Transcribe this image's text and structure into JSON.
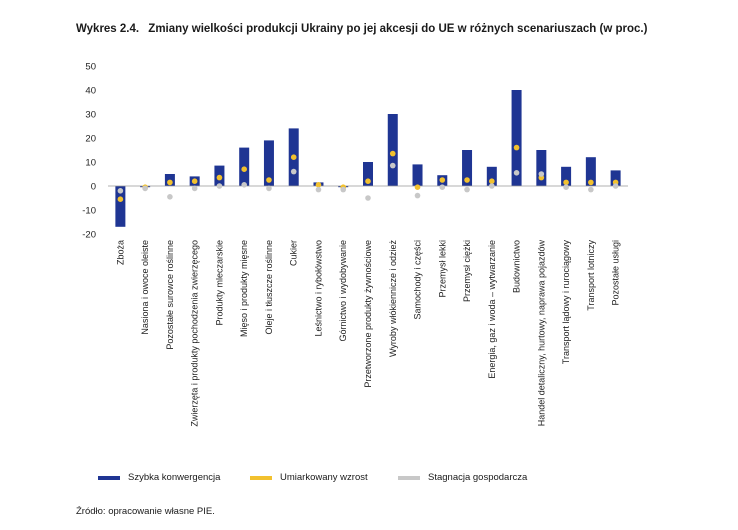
{
  "title": {
    "number": "Wykres 2.4.",
    "text": "Zmiany wielkości produkcji Ukrainy po jej akcesji do UE w różnych scenariuszach (w proc.)"
  },
  "source": "Źródło: opracowanie własne PIE.",
  "colors": {
    "bar": "#1f3593",
    "moderate": "#f2c12e",
    "stagnation": "#c8c8c8",
    "zero_line": "#999999"
  },
  "chart_data": {
    "type": "bar",
    "ylim": [
      -20,
      50
    ],
    "yticks": [
      50,
      40,
      30,
      20,
      10,
      0,
      -10,
      -20
    ],
    "grid": false,
    "legend_position": "bottom",
    "categories": [
      "Zboża",
      "Nasiona i owoce oleiste",
      "Pozostałe surowce roślinne",
      "Zwierzęta i produkty pochodzenia zwierzęcego",
      "Produkty mleczarskie",
      "Mięso i produkty mięsne",
      "Oleje i tłuszcze roślinne",
      "Cukier",
      "Leśnictwo i rybołówstwo",
      "Górnictwo i wydobywanie",
      "Przetworzone produkty żywnościowe",
      "Wyroby włókiennicze i odzież",
      "Samochody i części",
      "Przemysł lekki",
      "Przemysł ciężki",
      "Energia, gaz i woda – wytwarzanie",
      "Budownictwo",
      "Handel detaliczny, hurtowy, naprawa pojazdów",
      "Transport lądowy i rurociągowy",
      "Transport lotniczy",
      "Pozostałe usługi"
    ],
    "series": [
      {
        "name": "Szybka konwergencja",
        "kind": "bar",
        "values": [
          -17,
          -0.5,
          5,
          4,
          8.5,
          16,
          19,
          24,
          1.5,
          -0.5,
          10,
          30,
          9,
          4.5,
          15,
          8,
          40,
          15,
          8,
          12,
          6.5
        ]
      },
      {
        "name": "Umiarkowany wzrost",
        "kind": "dot",
        "values": [
          -5.5,
          -0.5,
          1.5,
          2,
          3.5,
          7,
          2.5,
          12,
          0.5,
          -0.5,
          2,
          13.5,
          -0.5,
          2.5,
          2.5,
          2,
          16,
          3.5,
          1.5,
          1.5,
          1.5
        ]
      },
      {
        "name": "Stagnacja gospodarcza",
        "kind": "dot",
        "values": [
          -2,
          -1,
          -4.5,
          -1,
          0,
          0.5,
          -1,
          6,
          -1.5,
          -1.5,
          -5,
          8.5,
          -4,
          -0.5,
          -1.5,
          0,
          5.5,
          5,
          -0.5,
          -1.5,
          0
        ]
      }
    ]
  }
}
